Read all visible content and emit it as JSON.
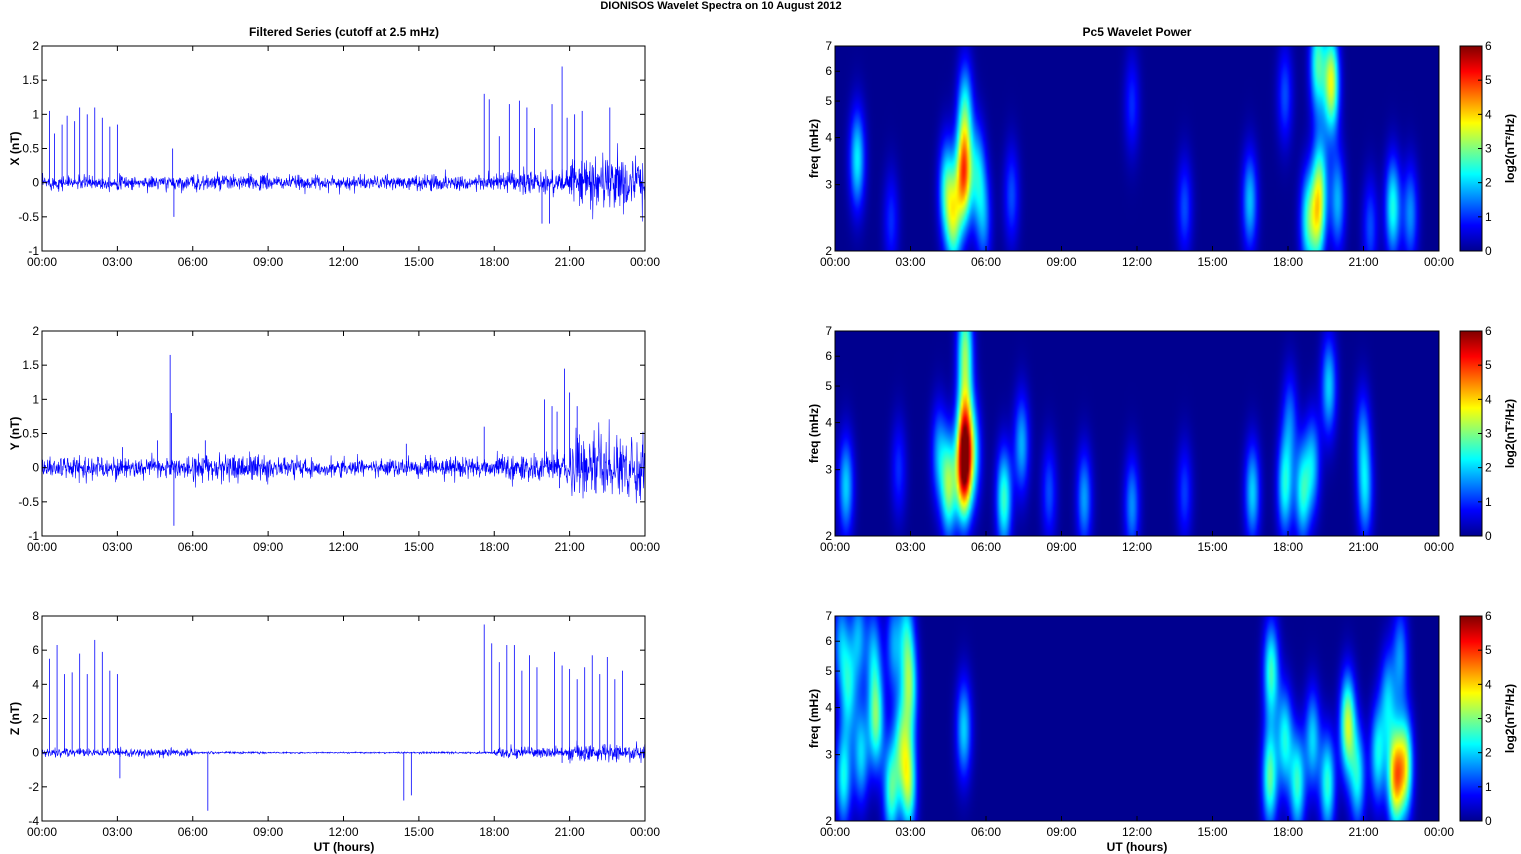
{
  "figure": {
    "title": "DIONISOS Wavelet Spectra on 10 August    2012",
    "left_column_title": "Filtered Series (cutoff at 2.5 mHz)",
    "right_column_title": "Pc5 Wavelet Power",
    "xlabel": "UT (hours)",
    "colors": {
      "trace": "#0000ff",
      "bg": "#00008f",
      "axis": "#000000"
    }
  },
  "chart_data": [
    {
      "type": "line",
      "panel": "time-series-x",
      "ylabel": "X (nT)",
      "xlim": [
        "00:00",
        "00:00"
      ],
      "ylim": [
        -1,
        2
      ],
      "xticks": [
        "00:00",
        "03:00",
        "06:00",
        "09:00",
        "12:00",
        "15:00",
        "18:00",
        "21:00",
        "00:00"
      ],
      "yticks": [
        "2",
        "1.5",
        "1",
        "0.5",
        "0",
        "-0.5",
        "-1"
      ],
      "noise_sd_by_3h": [
        0.05,
        0.05,
        0.06,
        0.05,
        0.05,
        0.06,
        0.08,
        0.2,
        0.06
      ],
      "spikes": [
        {
          "t": 0.3,
          "v": 1.05
        },
        {
          "t": 0.5,
          "v": 0.72
        },
        {
          "t": 0.8,
          "v": 0.85
        },
        {
          "t": 1.0,
          "v": 0.98
        },
        {
          "t": 1.3,
          "v": 0.9
        },
        {
          "t": 1.5,
          "v": 1.1
        },
        {
          "t": 1.8,
          "v": 1.0
        },
        {
          "t": 2.1,
          "v": 1.1
        },
        {
          "t": 2.4,
          "v": 0.95
        },
        {
          "t": 2.7,
          "v": 0.82
        },
        {
          "t": 3.0,
          "v": 0.85
        },
        {
          "t": 5.2,
          "v": 0.5
        },
        {
          "t": 5.25,
          "v": -0.5
        },
        {
          "t": 17.6,
          "v": 1.3
        },
        {
          "t": 17.8,
          "v": 1.22
        },
        {
          "t": 18.2,
          "v": 0.68
        },
        {
          "t": 18.6,
          "v": 1.15
        },
        {
          "t": 19.0,
          "v": 1.2
        },
        {
          "t": 19.3,
          "v": 1.1
        },
        {
          "t": 19.6,
          "v": 0.8
        },
        {
          "t": 20.3,
          "v": 1.15
        },
        {
          "t": 20.7,
          "v": 1.7
        },
        {
          "t": 20.9,
          "v": 0.95
        },
        {
          "t": 21.2,
          "v": 1.0
        },
        {
          "t": 21.5,
          "v": 1.05
        },
        {
          "t": 22.6,
          "v": 1.1
        },
        {
          "t": 20.2,
          "v": -0.6
        },
        {
          "t": 19.9,
          "v": -0.6
        }
      ]
    },
    {
      "type": "line",
      "panel": "time-series-y",
      "ylabel": "Y (nT)",
      "xlim": [
        "00:00",
        "00:00"
      ],
      "ylim": [
        -1,
        2
      ],
      "xticks": [
        "00:00",
        "03:00",
        "06:00",
        "09:00",
        "12:00",
        "15:00",
        "18:00",
        "21:00",
        "00:00"
      ],
      "yticks": [
        "2",
        "1.5",
        "1",
        "0.5",
        "0",
        "-0.5",
        "-1"
      ],
      "noise_sd_by_3h": [
        0.08,
        0.07,
        0.1,
        0.07,
        0.06,
        0.07,
        0.1,
        0.2,
        0.08
      ],
      "spikes": [
        {
          "t": 3.2,
          "v": 0.3
        },
        {
          "t": 4.6,
          "v": 0.4
        },
        {
          "t": 5.1,
          "v": 1.65
        },
        {
          "t": 5.15,
          "v": 0.8
        },
        {
          "t": 5.25,
          "v": -0.85
        },
        {
          "t": 6.5,
          "v": 0.4
        },
        {
          "t": 14.5,
          "v": 0.35
        },
        {
          "t": 17.6,
          "v": 0.6
        },
        {
          "t": 20.0,
          "v": 1.0
        },
        {
          "t": 20.3,
          "v": 0.9
        },
        {
          "t": 20.5,
          "v": 0.82
        },
        {
          "t": 20.8,
          "v": 1.45
        },
        {
          "t": 21.0,
          "v": 1.1
        },
        {
          "t": 21.3,
          "v": 0.9
        },
        {
          "t": 20.6,
          "v": -0.3
        }
      ]
    },
    {
      "type": "line",
      "panel": "time-series-z",
      "ylabel": "Z (nT)",
      "xlim": [
        "00:00",
        "00:00"
      ],
      "ylim": [
        -4,
        8
      ],
      "xticks": [
        "00:00",
        "03:00",
        "06:00",
        "09:00",
        "12:00",
        "15:00",
        "18:00",
        "21:00",
        "00:00"
      ],
      "yticks": [
        "8",
        "6",
        "4",
        "2",
        "0",
        "-2",
        "-4"
      ],
      "noise_sd_by_3h": [
        0.12,
        0.12,
        0.03,
        0.02,
        0.02,
        0.03,
        0.15,
        0.25,
        0.12
      ],
      "spikes": [
        {
          "t": 0.3,
          "v": 5.5
        },
        {
          "t": 0.6,
          "v": 6.3
        },
        {
          "t": 0.9,
          "v": 4.6
        },
        {
          "t": 1.2,
          "v": 4.7
        },
        {
          "t": 1.5,
          "v": 5.8
        },
        {
          "t": 1.8,
          "v": 4.6
        },
        {
          "t": 2.1,
          "v": 6.6
        },
        {
          "t": 2.4,
          "v": 5.9
        },
        {
          "t": 2.7,
          "v": 4.8
        },
        {
          "t": 3.0,
          "v": 4.6
        },
        {
          "t": 3.1,
          "v": -1.5
        },
        {
          "t": 6.6,
          "v": -3.4
        },
        {
          "t": 14.4,
          "v": -2.8
        },
        {
          "t": 14.7,
          "v": -2.5
        },
        {
          "t": 17.6,
          "v": 7.5
        },
        {
          "t": 17.9,
          "v": 6.4
        },
        {
          "t": 18.2,
          "v": 5.3
        },
        {
          "t": 18.5,
          "v": 6.3
        },
        {
          "t": 18.8,
          "v": 6.3
        },
        {
          "t": 19.1,
          "v": 4.8
        },
        {
          "t": 19.4,
          "v": 5.7
        },
        {
          "t": 19.7,
          "v": 5.0
        },
        {
          "t": 20.4,
          "v": 5.9
        },
        {
          "t": 20.7,
          "v": 5.1
        },
        {
          "t": 21.0,
          "v": 4.9
        },
        {
          "t": 21.3,
          "v": 4.3
        },
        {
          "t": 21.6,
          "v": 5.0
        },
        {
          "t": 21.9,
          "v": 5.7
        },
        {
          "t": 22.2,
          "v": 4.6
        },
        {
          "t": 22.5,
          "v": 5.6
        },
        {
          "t": 22.8,
          "v": 4.3
        },
        {
          "t": 23.1,
          "v": 4.8
        },
        {
          "t": 20.7,
          "v": -0.6
        }
      ]
    },
    {
      "type": "heatmap",
      "panel": "wavelet-x",
      "ylabel": "freq (mHz)",
      "colorbar_label": "log2(nT²/Hz)",
      "yscale": "log",
      "ylim": [
        2,
        7
      ],
      "clim": [
        0,
        6
      ],
      "xticks": [
        "00:00",
        "03:00",
        "06:00",
        "09:00",
        "12:00",
        "15:00",
        "18:00",
        "21:00",
        "00:00"
      ],
      "yticks": [
        "7",
        "6",
        "5",
        "4",
        "3",
        "2"
      ],
      "cticks": [
        "6",
        "5",
        "4",
        "3",
        "2",
        "1",
        "0"
      ],
      "blobs": [
        {
          "t": 0.85,
          "f": 3.5,
          "a": 2.2
        },
        {
          "t": 2.2,
          "f": 2.4,
          "a": 1.0
        },
        {
          "t": 4.4,
          "f": 2.9,
          "a": 2.3
        },
        {
          "t": 4.7,
          "f": 2.4,
          "a": 2.7
        },
        {
          "t": 5.1,
          "f": 3.2,
          "a": 4.4
        },
        {
          "t": 5.15,
          "f": 4.8,
          "a": 2.0
        },
        {
          "t": 5.65,
          "f": 3.2,
          "a": 1.9
        },
        {
          "t": 5.9,
          "f": 2.4,
          "a": 1.4
        },
        {
          "t": 7.0,
          "f": 2.8,
          "a": 1.2
        },
        {
          "t": 11.8,
          "f": 4.9,
          "a": 1.0
        },
        {
          "t": 13.9,
          "f": 2.6,
          "a": 1.2
        },
        {
          "t": 16.5,
          "f": 2.7,
          "a": 1.9
        },
        {
          "t": 17.9,
          "f": 5.2,
          "a": 1.2
        },
        {
          "t": 18.8,
          "f": 2.4,
          "a": 2.2
        },
        {
          "t": 19.2,
          "f": 2.4,
          "a": 2.6
        },
        {
          "t": 19.3,
          "f": 3.1,
          "a": 2.0
        },
        {
          "t": 19.2,
          "f": 6.3,
          "a": 2.6
        },
        {
          "t": 19.75,
          "f": 5.6,
          "a": 3.6
        },
        {
          "t": 20.0,
          "f": 2.7,
          "a": 1.8
        },
        {
          "t": 21.3,
          "f": 2.3,
          "a": 1.2
        },
        {
          "t": 22.2,
          "f": 2.6,
          "a": 2.4
        },
        {
          "t": 22.9,
          "f": 2.5,
          "a": 1.6
        }
      ]
    },
    {
      "type": "heatmap",
      "panel": "wavelet-y",
      "ylabel": "freq (mHz)",
      "colorbar_label": "log2(nT²/Hz)",
      "yscale": "log",
      "ylim": [
        2,
        7
      ],
      "clim": [
        0,
        6
      ],
      "xticks": [
        "00:00",
        "03:00",
        "06:00",
        "09:00",
        "12:00",
        "15:00",
        "18:00",
        "21:00",
        "00:00"
      ],
      "yticks": [
        "7",
        "6",
        "5",
        "4",
        "3",
        "2"
      ],
      "cticks": [
        "6",
        "5",
        "4",
        "3",
        "2",
        "1",
        "0"
      ],
      "blobs": [
        {
          "t": 0.4,
          "f": 2.7,
          "a": 2.0
        },
        {
          "t": 2.5,
          "f": 3.0,
          "a": 1.0
        },
        {
          "t": 4.1,
          "f": 3.3,
          "a": 1.6
        },
        {
          "t": 4.5,
          "f": 2.7,
          "a": 3.0
        },
        {
          "t": 5.1,
          "f": 3.0,
          "a": 5.4
        },
        {
          "t": 5.15,
          "f": 4.0,
          "a": 2.8
        },
        {
          "t": 5.15,
          "f": 6.4,
          "a": 2.8
        },
        {
          "t": 5.5,
          "f": 3.3,
          "a": 1.7
        },
        {
          "t": 6.7,
          "f": 2.5,
          "a": 2.6
        },
        {
          "t": 7.4,
          "f": 3.5,
          "a": 1.8
        },
        {
          "t": 8.5,
          "f": 2.6,
          "a": 1.2
        },
        {
          "t": 9.9,
          "f": 2.5,
          "a": 1.7
        },
        {
          "t": 11.8,
          "f": 2.4,
          "a": 1.6
        },
        {
          "t": 13.9,
          "f": 2.6,
          "a": 1.1
        },
        {
          "t": 16.6,
          "f": 2.6,
          "a": 2.0
        },
        {
          "t": 17.9,
          "f": 2.7,
          "a": 2.3
        },
        {
          "t": 18.1,
          "f": 4.1,
          "a": 1.3
        },
        {
          "t": 18.6,
          "f": 2.6,
          "a": 2.3
        },
        {
          "t": 19.0,
          "f": 3.1,
          "a": 1.8
        },
        {
          "t": 19.65,
          "f": 5.0,
          "a": 2.0
        },
        {
          "t": 21.0,
          "f": 3.7,
          "a": 1.3
        },
        {
          "t": 21.1,
          "f": 2.6,
          "a": 1.8
        }
      ]
    },
    {
      "type": "heatmap",
      "panel": "wavelet-z",
      "ylabel": "freq (mHz)",
      "colorbar_label": "log2(nT²/Hz)",
      "yscale": "log",
      "ylim": [
        2,
        7
      ],
      "clim": [
        0,
        6
      ],
      "xticks": [
        "00:00",
        "03:00",
        "06:00",
        "09:00",
        "12:00",
        "15:00",
        "18:00",
        "21:00",
        "00:00"
      ],
      "yticks": [
        "7",
        "6",
        "5",
        "4",
        "3",
        "2"
      ],
      "cticks": [
        "6",
        "5",
        "4",
        "3",
        "2",
        "1",
        "0"
      ],
      "blobs": [
        {
          "t": 0.3,
          "f": 2.6,
          "a": 2.3
        },
        {
          "t": 0.5,
          "f": 4.5,
          "a": 2.0
        },
        {
          "t": 1.0,
          "f": 3.0,
          "a": 2.0
        },
        {
          "t": 1.6,
          "f": 3.7,
          "a": 2.8
        },
        {
          "t": 2.2,
          "f": 2.4,
          "a": 2.6
        },
        {
          "t": 2.6,
          "f": 3.2,
          "a": 2.2
        },
        {
          "t": 2.9,
          "f": 2.5,
          "a": 3.0
        },
        {
          "t": 2.95,
          "f": 4.5,
          "a": 2.5
        },
        {
          "t": 0.2,
          "f": 6.0,
          "a": 1.6
        },
        {
          "t": 0.9,
          "f": 6.2,
          "a": 1.7
        },
        {
          "t": 1.5,
          "f": 5.6,
          "a": 1.6
        },
        {
          "t": 2.3,
          "f": 5.9,
          "a": 1.6
        },
        {
          "t": 2.8,
          "f": 6.3,
          "a": 1.8
        },
        {
          "t": 5.1,
          "f": 3.5,
          "a": 2.0
        },
        {
          "t": 17.3,
          "f": 2.6,
          "a": 2.8
        },
        {
          "t": 17.35,
          "f": 5.0,
          "a": 2.6
        },
        {
          "t": 17.9,
          "f": 3.3,
          "a": 2.3
        },
        {
          "t": 18.4,
          "f": 2.5,
          "a": 2.5
        },
        {
          "t": 19.0,
          "f": 3.3,
          "a": 2.0
        },
        {
          "t": 19.6,
          "f": 2.5,
          "a": 2.5
        },
        {
          "t": 20.4,
          "f": 3.6,
          "a": 3.4
        },
        {
          "t": 20.8,
          "f": 2.6,
          "a": 2.2
        },
        {
          "t": 21.6,
          "f": 3.0,
          "a": 2.2
        },
        {
          "t": 22.0,
          "f": 4.2,
          "a": 1.8
        },
        {
          "t": 22.3,
          "f": 2.6,
          "a": 4.0
        },
        {
          "t": 22.7,
          "f": 2.8,
          "a": 3.2
        },
        {
          "t": 22.5,
          "f": 5.5,
          "a": 1.6
        }
      ]
    }
  ]
}
